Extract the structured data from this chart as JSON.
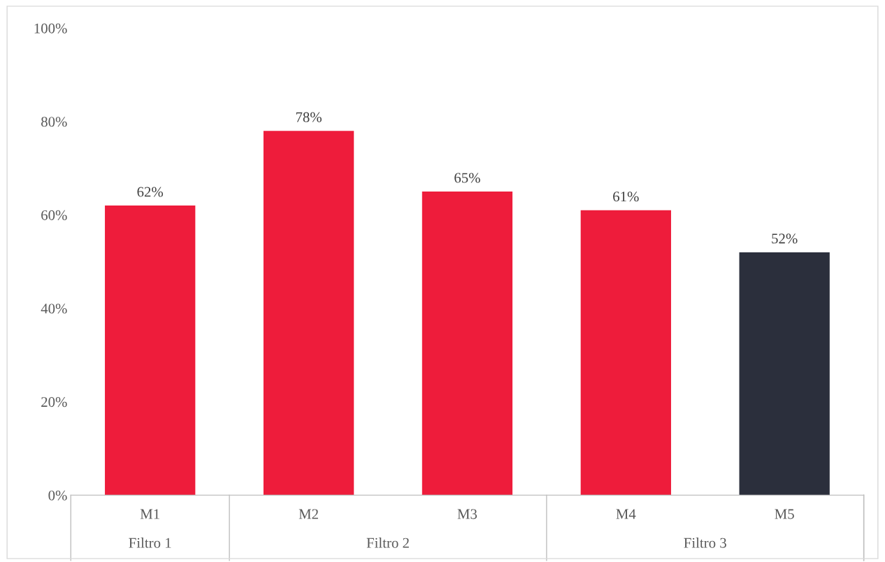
{
  "chart_data": {
    "type": "bar",
    "categories": [
      "M1",
      "M2",
      "M3",
      "M4",
      "M5"
    ],
    "values": [
      62,
      78,
      65,
      61,
      52
    ],
    "colors": [
      "#ee1c3b",
      "#ee1c3b",
      "#ee1c3b",
      "#ee1c3b",
      "#2b2f3c"
    ],
    "value_labels": [
      "62%",
      "78%",
      "65%",
      "61%",
      "52%"
    ],
    "ylim": [
      0,
      100
    ],
    "yticks": [
      {
        "value": 0,
        "label": "0%"
      },
      {
        "value": 20,
        "label": "20%"
      },
      {
        "value": 40,
        "label": "40%"
      },
      {
        "value": 60,
        "label": "60%"
      },
      {
        "value": 80,
        "label": "80%"
      },
      {
        "value": 100,
        "label": "100%"
      }
    ],
    "annotations": [
      "Filtro 1",
      "Filtro 2",
      "Filtro 3"
    ],
    "grid": false
  }
}
